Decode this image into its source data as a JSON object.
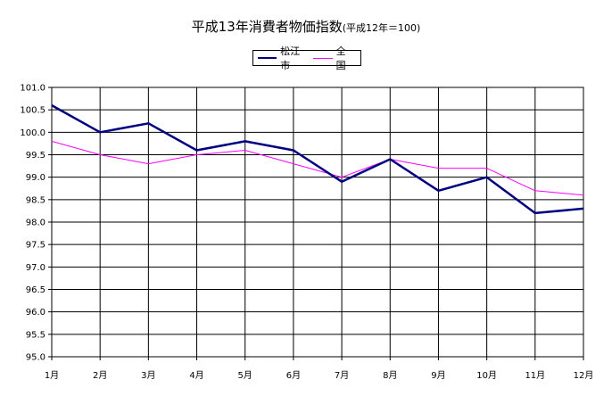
{
  "chart_data": {
    "type": "line",
    "title": "平成13年消費者物価指数",
    "subtitle": "(平成12年＝100)",
    "categories": [
      "1月",
      "2月",
      "3月",
      "4月",
      "5月",
      "6月",
      "7月",
      "8月",
      "9月",
      "10月",
      "11月",
      "12月"
    ],
    "series": [
      {
        "name": "松江市",
        "color": "#000080",
        "values": [
          100.6,
          100.0,
          100.2,
          99.6,
          99.8,
          99.6,
          98.9,
          99.4,
          98.7,
          99.0,
          98.2,
          98.3
        ]
      },
      {
        "name": "全国",
        "color": "#ff00ff",
        "values": [
          99.8,
          99.5,
          99.3,
          99.5,
          99.6,
          99.3,
          99.0,
          99.4,
          99.2,
          99.2,
          98.7,
          98.6
        ]
      }
    ],
    "ylim": [
      95.0,
      101.0
    ],
    "ytick_step": 0.5,
    "ytick_labels": [
      "95.0",
      "95.5",
      "96.0",
      "96.5",
      "97.0",
      "97.5",
      "98.0",
      "98.5",
      "99.0",
      "99.5",
      "100.0",
      "100.5",
      "101.0"
    ],
    "grid": true,
    "legend_position": "top-center",
    "xlabel": "",
    "ylabel": ""
  }
}
